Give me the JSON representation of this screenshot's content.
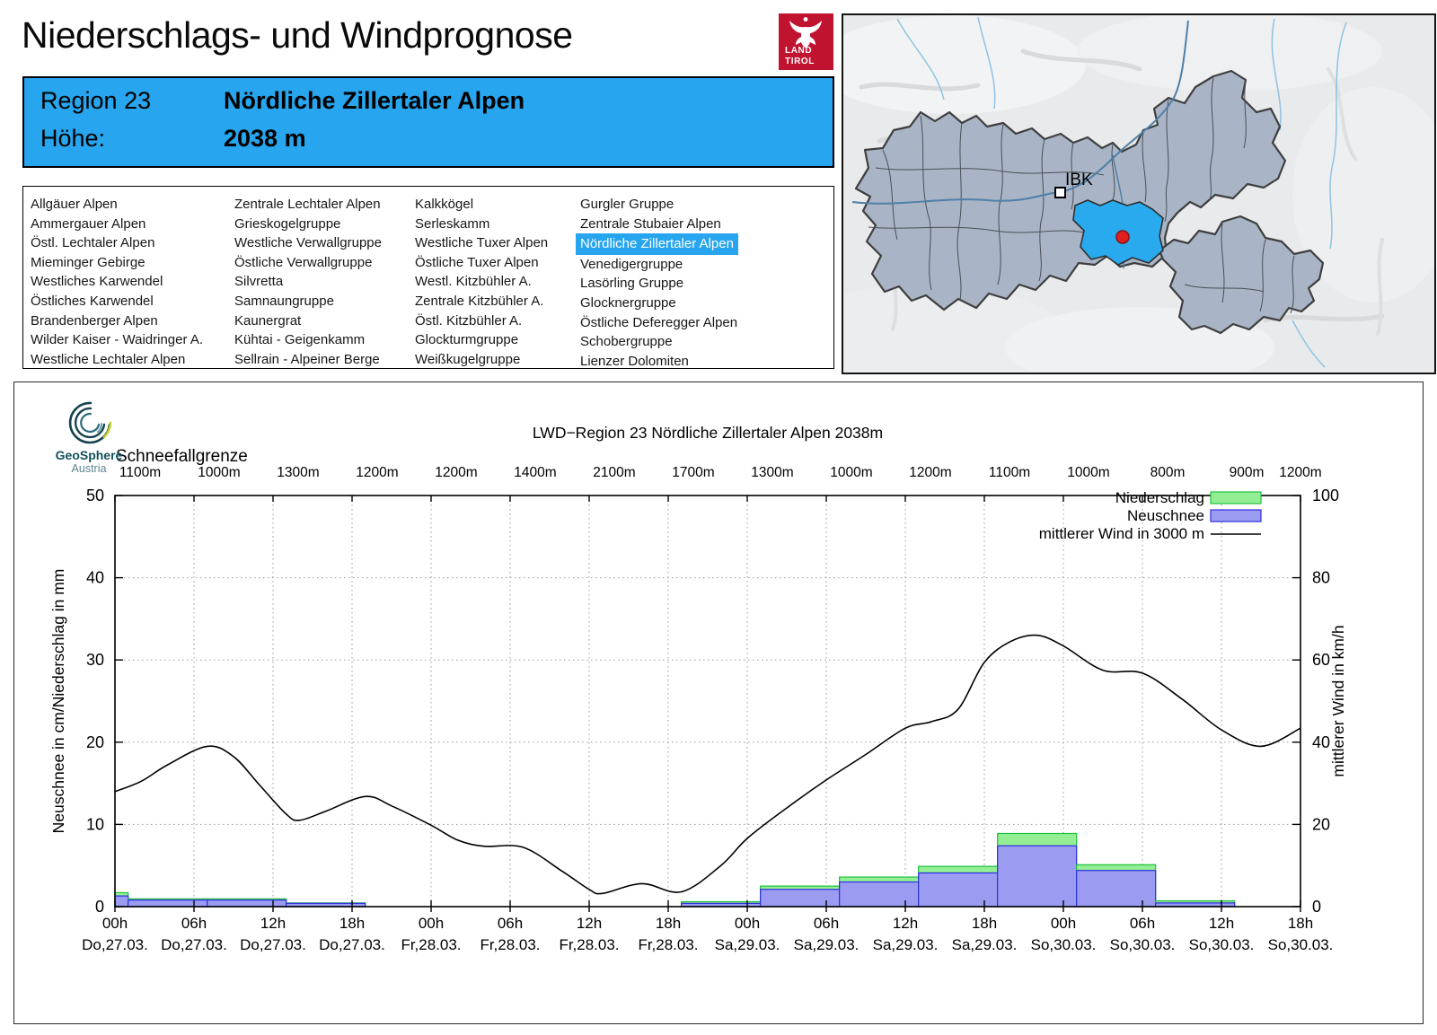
{
  "header": {
    "title": "Niederschlags- und Windprognose",
    "logo": {
      "line1": "LAND",
      "line2": "TIROL",
      "color": "#c01330"
    }
  },
  "region_box": {
    "region_label": "Region 23",
    "region_name": "Nördliche Zillertaler Alpen",
    "altitude_label": "Höhe:",
    "altitude_value": "2038 m",
    "accent_color": "#27a5ee"
  },
  "region_list": {
    "selected": "Nördliche Zillertaler Alpen",
    "columns": [
      [
        "Allgäuer Alpen",
        "Ammergauer Alpen",
        "Östl. Lechtaler Alpen",
        "Mieminger Gebirge",
        "Westliches Karwendel",
        "Östliches Karwendel",
        "Brandenberger Alpen",
        "Wilder Kaiser - Waidringer A.",
        "Westliche Lechtaler Alpen"
      ],
      [
        "Zentrale Lechtaler Alpen",
        "Grieskogelgruppe",
        "Westliche Verwallgruppe",
        "Östliche Verwallgruppe",
        "Silvretta",
        "Samnaungruppe",
        "Kaunergrat",
        "Kühtai - Geigenkamm",
        "Sellrain - Alpeiner Berge"
      ],
      [
        "Kalkkögel",
        "Serleskamm",
        "Westliche Tuxer Alpen",
        "Östliche Tuxer Alpen",
        "Westl. Kitzbühler A.",
        "Zentrale Kitzbühler A.",
        "Östl. Kitzbühler A.",
        "Glockturmgruppe",
        "Weißkugelgruppe"
      ],
      [
        "Gurgler Gruppe",
        "Zentrale Stubaier Alpen",
        "Nördliche Zillertaler Alpen",
        "Venedigergruppe",
        "Lasörling Gruppe",
        "Glocknergruppe",
        "Östliche Deferegger Alpen",
        "Schobergruppe",
        "Lienzer Dolomiten"
      ]
    ]
  },
  "map": {
    "city_label": "IBK",
    "highlight_color": "#29a9ee",
    "region_fill": "#a9b5c6",
    "marker_color": "#e02020"
  },
  "geosphere": {
    "name": "GeoSphere",
    "country": "Austria"
  },
  "chart_data": {
    "type": "composite",
    "title": "LWD−Region 23 Nördliche Zillertaler Alpen 2038m",
    "snowline_label": "Schneefallgrenze",
    "snowline_values": [
      "1100m",
      "1000m",
      "1300m",
      "1200m",
      "1200m",
      "1400m",
      "2100m",
      "1700m",
      "1300m",
      "1000m",
      "1200m",
      "1100m",
      "1000m",
      "800m",
      "900m",
      "1200m"
    ],
    "ylabel_left": "Neuschnee in cm/Niederschlag in mm",
    "ylabel_right": "mittlerer Wind in km/h",
    "ylim_left": [
      0,
      50
    ],
    "ylim_right": [
      0,
      100
    ],
    "yticks_left": [
      0,
      10,
      20,
      30,
      40,
      50
    ],
    "yticks_right": [
      0,
      20,
      40,
      60,
      80,
      100
    ],
    "x_hours": 90,
    "grid": true,
    "legend_position": "top-right",
    "x_ticks": [
      {
        "time": "00h",
        "date": "Do,27.03."
      },
      {
        "time": "06h",
        "date": "Do,27.03."
      },
      {
        "time": "12h",
        "date": "Do,27.03."
      },
      {
        "time": "18h",
        "date": "Do,27.03."
      },
      {
        "time": "00h",
        "date": "Fr,28.03."
      },
      {
        "time": "06h",
        "date": "Fr,28.03."
      },
      {
        "time": "12h",
        "date": "Fr,28.03."
      },
      {
        "time": "18h",
        "date": "Fr,28.03."
      },
      {
        "time": "00h",
        "date": "Sa,29.03."
      },
      {
        "time": "06h",
        "date": "Sa,29.03."
      },
      {
        "time": "12h",
        "date": "Sa,29.03."
      },
      {
        "time": "18h",
        "date": "Sa,29.03."
      },
      {
        "time": "00h",
        "date": "So,30.03."
      },
      {
        "time": "06h",
        "date": "So,30.03."
      },
      {
        "time": "12h",
        "date": "So,30.03."
      },
      {
        "time": "18h",
        "date": "So,30.03."
      }
    ],
    "legend": [
      {
        "label": "Niederschlag",
        "type": "box",
        "fill": "#94ef94",
        "border": "#1fc13f"
      },
      {
        "label": "Neuschnee",
        "type": "box",
        "fill": "#9b9bf2",
        "border": "#2e2ee0"
      },
      {
        "label": "mittlerer Wind in 3000 m",
        "type": "line",
        "color": "#000000"
      }
    ],
    "bars_unit_hours": "start/end are hours after Do 27.03. 00h",
    "bars": [
      {
        "start": 0,
        "end": 1,
        "niederschlag_mm": 1.7,
        "neuschnee_cm": 1.3
      },
      {
        "start": 1,
        "end": 7,
        "niederschlag_mm": 0.95,
        "neuschnee_cm": 0.8
      },
      {
        "start": 7,
        "end": 13,
        "niederschlag_mm": 0.95,
        "neuschnee_cm": 0.8
      },
      {
        "start": 13,
        "end": 19,
        "niederschlag_mm": 0.45,
        "neuschnee_cm": 0.4
      },
      {
        "start": 43,
        "end": 49,
        "niederschlag_mm": 0.6,
        "neuschnee_cm": 0.4
      },
      {
        "start": 49,
        "end": 55,
        "niederschlag_mm": 2.5,
        "neuschnee_cm": 2.1
      },
      {
        "start": 55,
        "end": 61,
        "niederschlag_mm": 3.6,
        "neuschnee_cm": 3.0
      },
      {
        "start": 61,
        "end": 67,
        "niederschlag_mm": 4.9,
        "neuschnee_cm": 4.1
      },
      {
        "start": 67,
        "end": 73,
        "niederschlag_mm": 8.9,
        "neuschnee_cm": 7.4
      },
      {
        "start": 73,
        "end": 79,
        "niederschlag_mm": 5.1,
        "neuschnee_cm": 4.4
      },
      {
        "start": 79,
        "end": 85,
        "niederschlag_mm": 0.7,
        "neuschnee_cm": 0.45
      }
    ],
    "wind_kmh_points": [
      [
        0,
        28
      ],
      [
        2,
        30.5
      ],
      [
        4,
        34.5
      ],
      [
        7,
        39
      ],
      [
        9,
        36.5
      ],
      [
        11,
        29.5
      ],
      [
        13,
        22.5
      ],
      [
        14,
        21
      ],
      [
        16,
        23.2
      ],
      [
        19,
        26.8
      ],
      [
        21,
        24.5
      ],
      [
        24,
        19.8
      ],
      [
        26,
        16.2
      ],
      [
        28,
        14.7
      ],
      [
        31,
        14.4
      ],
      [
        34,
        8.5
      ],
      [
        36,
        4.2
      ],
      [
        37,
        3.2
      ],
      [
        40,
        5.6
      ],
      [
        43,
        3.6
      ],
      [
        46,
        10
      ],
      [
        48,
        16.6
      ],
      [
        51,
        24
      ],
      [
        54,
        30.8
      ],
      [
        57,
        37
      ],
      [
        60,
        43.4
      ],
      [
        62,
        45
      ],
      [
        64,
        48
      ],
      [
        66,
        59.4
      ],
      [
        68,
        64.5
      ],
      [
        70,
        66
      ],
      [
        72,
        63.4
      ],
      [
        75,
        57.5
      ],
      [
        78,
        56.8
      ],
      [
        81,
        50.5
      ],
      [
        84,
        43
      ],
      [
        87,
        39
      ],
      [
        90,
        43.4
      ]
    ]
  }
}
